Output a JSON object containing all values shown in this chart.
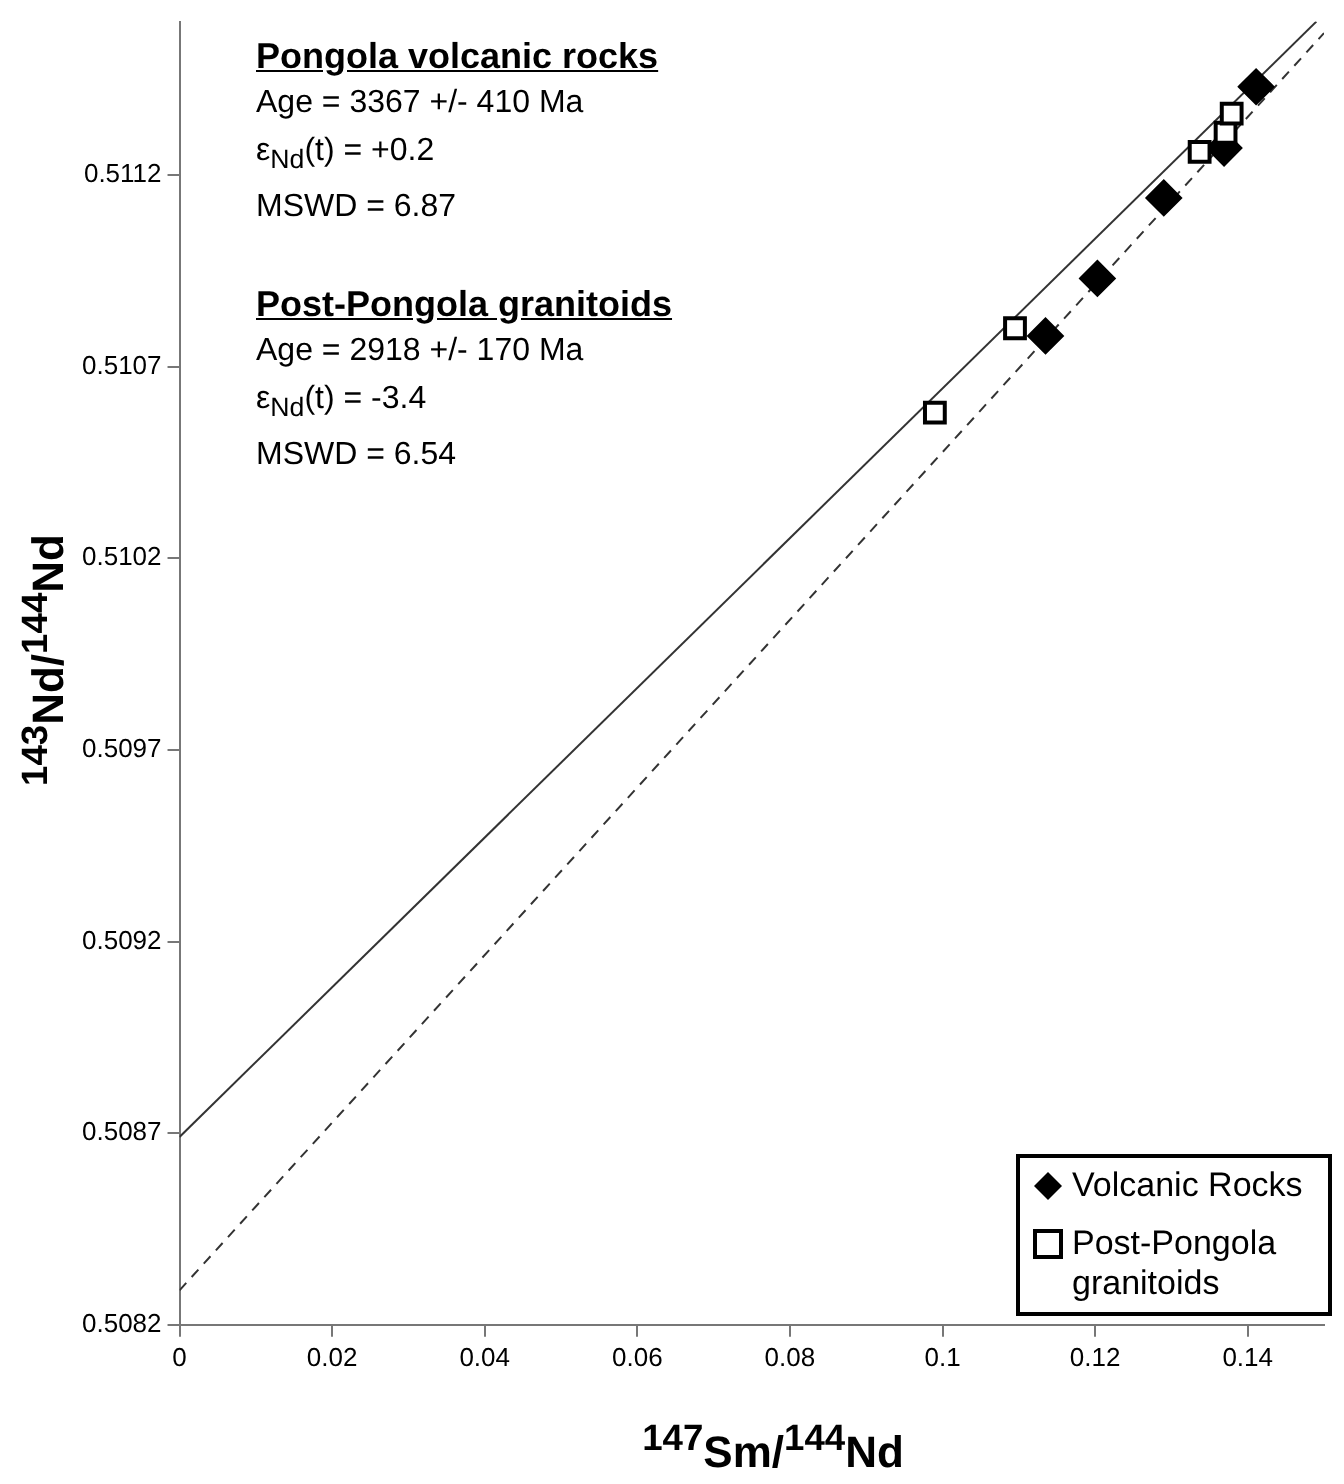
{
  "chart_data": {
    "type": "scatter",
    "xlabel": "$^{147}$Sm/$^{144}$Nd",
    "ylabel": "$^{143}$Nd/$^{144}$Nd",
    "annotations": [
      "Pongola volcanic rocks",
      "Age = 3367 +/- 410 Ma",
      "ε$_{Nd}$(t) = +0.2",
      "MSWD = 6.87",
      "Post-Pongola granitoids",
      "Age = 2918 +/- 170 Ma",
      "ε$_{Nd}$(t) = -3.4",
      "MSWD = 6.54"
    ],
    "series": [
      {
        "name": "Volcanic Rocks",
        "type": "scatter",
        "marker": "diamond",
        "color": "#000000",
        "x": [
          0.1411,
          0.1369,
          0.129,
          0.1203,
          0.1135
        ],
        "values": [
          0.51143,
          0.51127,
          0.51114,
          0.51093,
          0.51078
        ]
      },
      {
        "name": "Post-Pongola granitoids",
        "type": "scatter",
        "marker": "square",
        "color": "#000000",
        "x": [
          0.1095,
          0.099,
          0.1337,
          0.1371,
          0.1379
        ],
        "values": [
          0.5108,
          0.51058,
          0.51126,
          0.51131,
          0.51136
        ]
      },
      {
        "type": "line",
        "line_style": "solid",
        "marker": "none",
        "color": "#333333",
        "x": [
          0,
          0.149
        ],
        "values": [
          0.50869,
          0.5116
        ]
      },
      {
        "type": "line",
        "line_style": "dashed",
        "marker": "none",
        "color": "#333333",
        "x": [
          0,
          0.15
        ],
        "values": [
          0.50829,
          0.51157
        ]
      }
    ],
    "xlim": [
      0,
      0.15
    ],
    "xticks": [
      0,
      0.02,
      0.04,
      0.06,
      0.08,
      0.1,
      0.12,
      0.14
    ],
    "ylim": [
      0.5082,
      0.5116
    ],
    "yticks": [
      0.5082,
      0.5087,
      0.5092,
      0.5097,
      0.5102,
      0.5107,
      0.5112
    ],
    "grid": false,
    "legend": "bottom right"
  }
}
